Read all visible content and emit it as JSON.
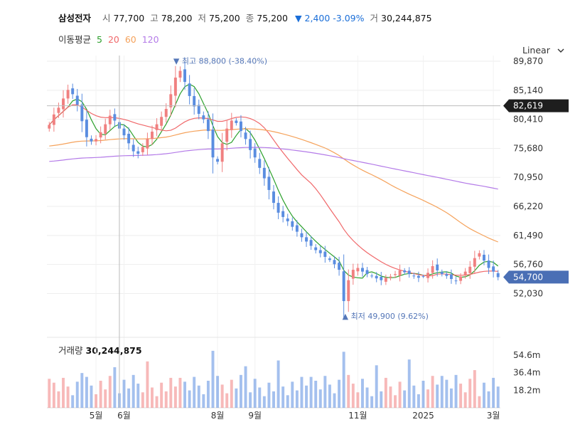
{
  "header": {
    "name": "삼성전자",
    "open_label": "시",
    "open": "77,700",
    "high_label": "고",
    "high": "78,200",
    "low_label": "저",
    "low": "75,200",
    "close_label": "종",
    "close": "75,200",
    "change": "▼ 2,400 -3.09%",
    "volume_label": "거",
    "volume": "30,244,875"
  },
  "moving_averages": {
    "label": "이동평균",
    "items": [
      {
        "period": "5",
        "color": "#2ca02c"
      },
      {
        "period": "20",
        "color": "#f0686a"
      },
      {
        "period": "60",
        "color": "#f5a25b"
      },
      {
        "period": "120",
        "color": "#b47be8"
      }
    ]
  },
  "scale_selector": {
    "value": "Linear"
  },
  "volume_panel": {
    "label": "거래량",
    "value": "30,244,875"
  },
  "chart_data": {
    "type": "candlestick",
    "price_ticks": [
      89870,
      85140,
      80410,
      75680,
      70950,
      66220,
      61490,
      56760,
      52030
    ],
    "price_tick_labels": [
      "89,870",
      "85,140",
      "80,410",
      "75,680",
      "70,950",
      "66,220",
      "61,490",
      "56,760",
      "52,030"
    ],
    "ylim": [
      47100,
      90800
    ],
    "x_labels": [
      {
        "label": "5월",
        "index": 10
      },
      {
        "label": "6월",
        "index": 16
      },
      {
        "label": "8월",
        "index": 36
      },
      {
        "label": "9월",
        "index": 44
      },
      {
        "label": "11월",
        "index": 66
      },
      {
        "label": "2025",
        "index": 80
      },
      {
        "label": "3월",
        "index": 95
      }
    ],
    "crosshair": {
      "price": 82619,
      "label": "82,619",
      "index": 15
    },
    "last_price": {
      "price": 54700,
      "label": "54,700"
    },
    "max_annotation": {
      "text": "▼ 최고 88,800 (-38.40%)",
      "price": 88800,
      "index": 27
    },
    "min_annotation": {
      "text": "▲ 최저 49,900 (9.62%)",
      "price": 49900,
      "index": 63
    },
    "volume_ticks": [
      "54.6m",
      "36.4m",
      "18.2m"
    ],
    "volume_tick_values": [
      54.6,
      36.4,
      18.2
    ],
    "volume_max": 70,
    "up_color": "#f08080",
    "down_color": "#5a8de0",
    "closes": [
      79500,
      81200,
      82300,
      83800,
      85200,
      84500,
      82800,
      80100,
      77500,
      76800,
      77200,
      78300,
      79600,
      81000,
      80200,
      78900,
      77800,
      76500,
      75200,
      74800,
      75900,
      77200,
      78400,
      79600,
      80800,
      82100,
      84500,
      87200,
      88300,
      86500,
      84200,
      82500,
      81300,
      80400,
      78500,
      74200,
      73500,
      76500,
      78900,
      80200,
      79800,
      78500,
      77200,
      75400,
      74200,
      72500,
      70800,
      68900,
      66800,
      65200,
      64500,
      63800,
      62900,
      62100,
      61200,
      60500,
      59800,
      59100,
      58600,
      58000,
      57500,
      56800,
      55900,
      50800,
      54200,
      55900,
      56200,
      55600,
      55200,
      54900,
      54500,
      54200,
      54600,
      54800,
      55200,
      55800,
      55500,
      55200,
      54900,
      54600,
      54800,
      55400,
      56500,
      55800,
      55200,
      54900,
      54400,
      54100,
      54800,
      55600,
      56400,
      57800,
      58600,
      57400,
      56200,
      55600,
      54700
    ]
  }
}
